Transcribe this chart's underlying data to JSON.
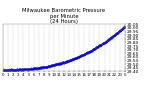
{
  "title": "Milwaukee Barometric Pressure\nper Minute\n(24 Hours)",
  "title_fontsize": 3.8,
  "bg_color": "#ffffff",
  "plot_color": "#0000cc",
  "grid_color": "#b0b0b0",
  "y_label_color": "#000000",
  "x_label_color": "#000000",
  "y_min": 29.4,
  "y_max": 30.05,
  "x_min": 0,
  "x_max": 1440,
  "x_tick_labels": [
    "0",
    "1",
    "2",
    "3",
    "4",
    "5",
    "6",
    "7",
    "8",
    "9",
    "10",
    "11",
    "12",
    "13",
    "14",
    "15",
    "16",
    "17",
    "18",
    "19",
    "20",
    "21",
    "22",
    "23",
    "0"
  ],
  "ylabel_fontsize": 3.2,
  "xlabel_fontsize": 2.8,
  "y_ticks": [
    29.4,
    29.45,
    29.5,
    29.55,
    29.6,
    29.65,
    29.7,
    29.75,
    29.8,
    29.85,
    29.9,
    29.95,
    30.0,
    30.05
  ]
}
